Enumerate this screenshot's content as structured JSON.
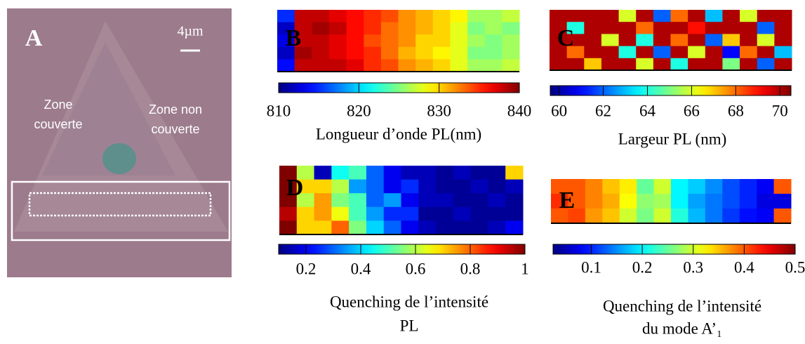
{
  "image_panel": {
    "letter": "A",
    "scale": "4µm",
    "left_zone": [
      "Zone",
      "couverte"
    ],
    "right_zone": [
      "Zone non",
      "couverte"
    ]
  },
  "chart_data": [
    {
      "type": "heatmap",
      "title": "B",
      "colorbar_label": [
        "Longueur d’onde PL(nm)"
      ],
      "zlim": [
        810,
        840
      ],
      "zticks": [
        810,
        820,
        830,
        840
      ],
      "z": [
        [
          815,
          838,
          838,
          837,
          836,
          835,
          834,
          832,
          831,
          830,
          829,
          826,
          826,
          827
        ],
        [
          812,
          838,
          839,
          838,
          836,
          835,
          833,
          832,
          831,
          830,
          828,
          825,
          826,
          825
        ],
        [
          813,
          838,
          838,
          837,
          836,
          834,
          833,
          832,
          830,
          830,
          828,
          826,
          825,
          826
        ],
        [
          812,
          839,
          838,
          837,
          836,
          835,
          833,
          831,
          830,
          829,
          828,
          825,
          825,
          826
        ],
        [
          814,
          838,
          838,
          838,
          837,
          835,
          834,
          832,
          831,
          830,
          828,
          826,
          826,
          827
        ]
      ]
    },
    {
      "type": "heatmap",
      "title": "C",
      "colorbar_label": [
        "Largeur PL (nm)"
      ],
      "zlim": [
        59.6,
        70.5
      ],
      "zticks": [
        60,
        62,
        64,
        66,
        68,
        70
      ],
      "z": [
        [
          70,
          70,
          70,
          70,
          66,
          70,
          62,
          68,
          70,
          63,
          70,
          66,
          70,
          70
        ],
        [
          70,
          64,
          70,
          70,
          70,
          68,
          70,
          70,
          69,
          70,
          70,
          70,
          62,
          70
        ],
        [
          70,
          70,
          70,
          66,
          70,
          64,
          70,
          68,
          70,
          62,
          67,
          70,
          66,
          70
        ],
        [
          70,
          68,
          70,
          70,
          64,
          70,
          62,
          70,
          66,
          70,
          61,
          68,
          70,
          63
        ],
        [
          70,
          70,
          67,
          70,
          70,
          66,
          70,
          64,
          70,
          70,
          65,
          70,
          62,
          70
        ]
      ]
    },
    {
      "type": "heatmap",
      "title": "D",
      "colorbar_label": [
        "Quenching de l’intensité",
        "PL"
      ],
      "zlim": [
        0.1,
        1
      ],
      "zticks": [
        0.2,
        0.4,
        0.6,
        0.8,
        1
      ],
      "z": [
        [
          1,
          0.6,
          0.15,
          0.45,
          0.5,
          0.3,
          0.2,
          0.15,
          0.15,
          0.12,
          0.15,
          0.12,
          0.12,
          0.7
        ],
        [
          1,
          0.7,
          0.7,
          0.6,
          0.35,
          0.3,
          0.2,
          0.25,
          0.15,
          0.12,
          0.12,
          0.15,
          0.12,
          0.15
        ],
        [
          1,
          0.6,
          0.75,
          0.55,
          0.5,
          0.3,
          0.35,
          0.2,
          0.15,
          0.15,
          0.12,
          0.12,
          0.15,
          0.12
        ],
        [
          0.95,
          0.7,
          0.75,
          0.65,
          0.5,
          0.35,
          0.25,
          0.25,
          0.12,
          0.12,
          0.15,
          0.12,
          0.12,
          0.12
        ],
        [
          1,
          0.7,
          0.7,
          0.8,
          0.55,
          0.4,
          0.3,
          0.2,
          0.15,
          0.12,
          0.12,
          0.12,
          0.15,
          0.2
        ]
      ]
    },
    {
      "type": "heatmap",
      "title": "E",
      "colorbar_label": [
        "Quenching de l’intensité",
        "du mode A’₁"
      ],
      "zlim": [
        0.025,
        0.5
      ],
      "zticks": [
        0.1,
        0.2,
        0.3,
        0.4,
        0.5
      ],
      "z": [
        [
          0.4,
          0.4,
          0.38,
          0.35,
          0.33,
          0.25,
          0.3,
          0.2,
          0.18,
          0.15,
          0.12,
          0.1,
          0.08,
          0.4
        ],
        [
          0.42,
          0.4,
          0.38,
          0.36,
          0.32,
          0.27,
          0.28,
          0.2,
          0.16,
          0.14,
          0.12,
          0.1,
          0.07,
          0.07
        ],
        [
          0.4,
          0.41,
          0.37,
          0.35,
          0.3,
          0.26,
          0.3,
          0.22,
          0.17,
          0.14,
          0.11,
          0.09,
          0.08,
          0.4
        ]
      ]
    }
  ]
}
